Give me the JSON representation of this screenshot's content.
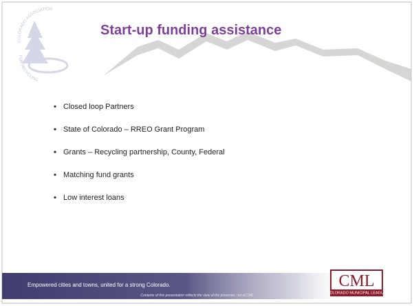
{
  "header": {
    "title": "Start-up funding assistance",
    "logo_top": "COLORADO ASSOCIATION",
    "logo_bottom": "FOR RECYCLING"
  },
  "bullets": [
    "Closed loop Partners",
    "State of Colorado – RREO Grant Program",
    "Grants – Recycling partnership, County, Federal",
    "Matching fund grants",
    "Low interest loans"
  ],
  "footer": {
    "tagline": "Empowered cities and towns, united for a strong Colorado.",
    "disclaimer": "Contents of this presentation reflects the view of the presenter, not of CML.",
    "logo_abbr": "CML",
    "logo_name": "COLORADO MUNICIPAL LEAGUE"
  }
}
